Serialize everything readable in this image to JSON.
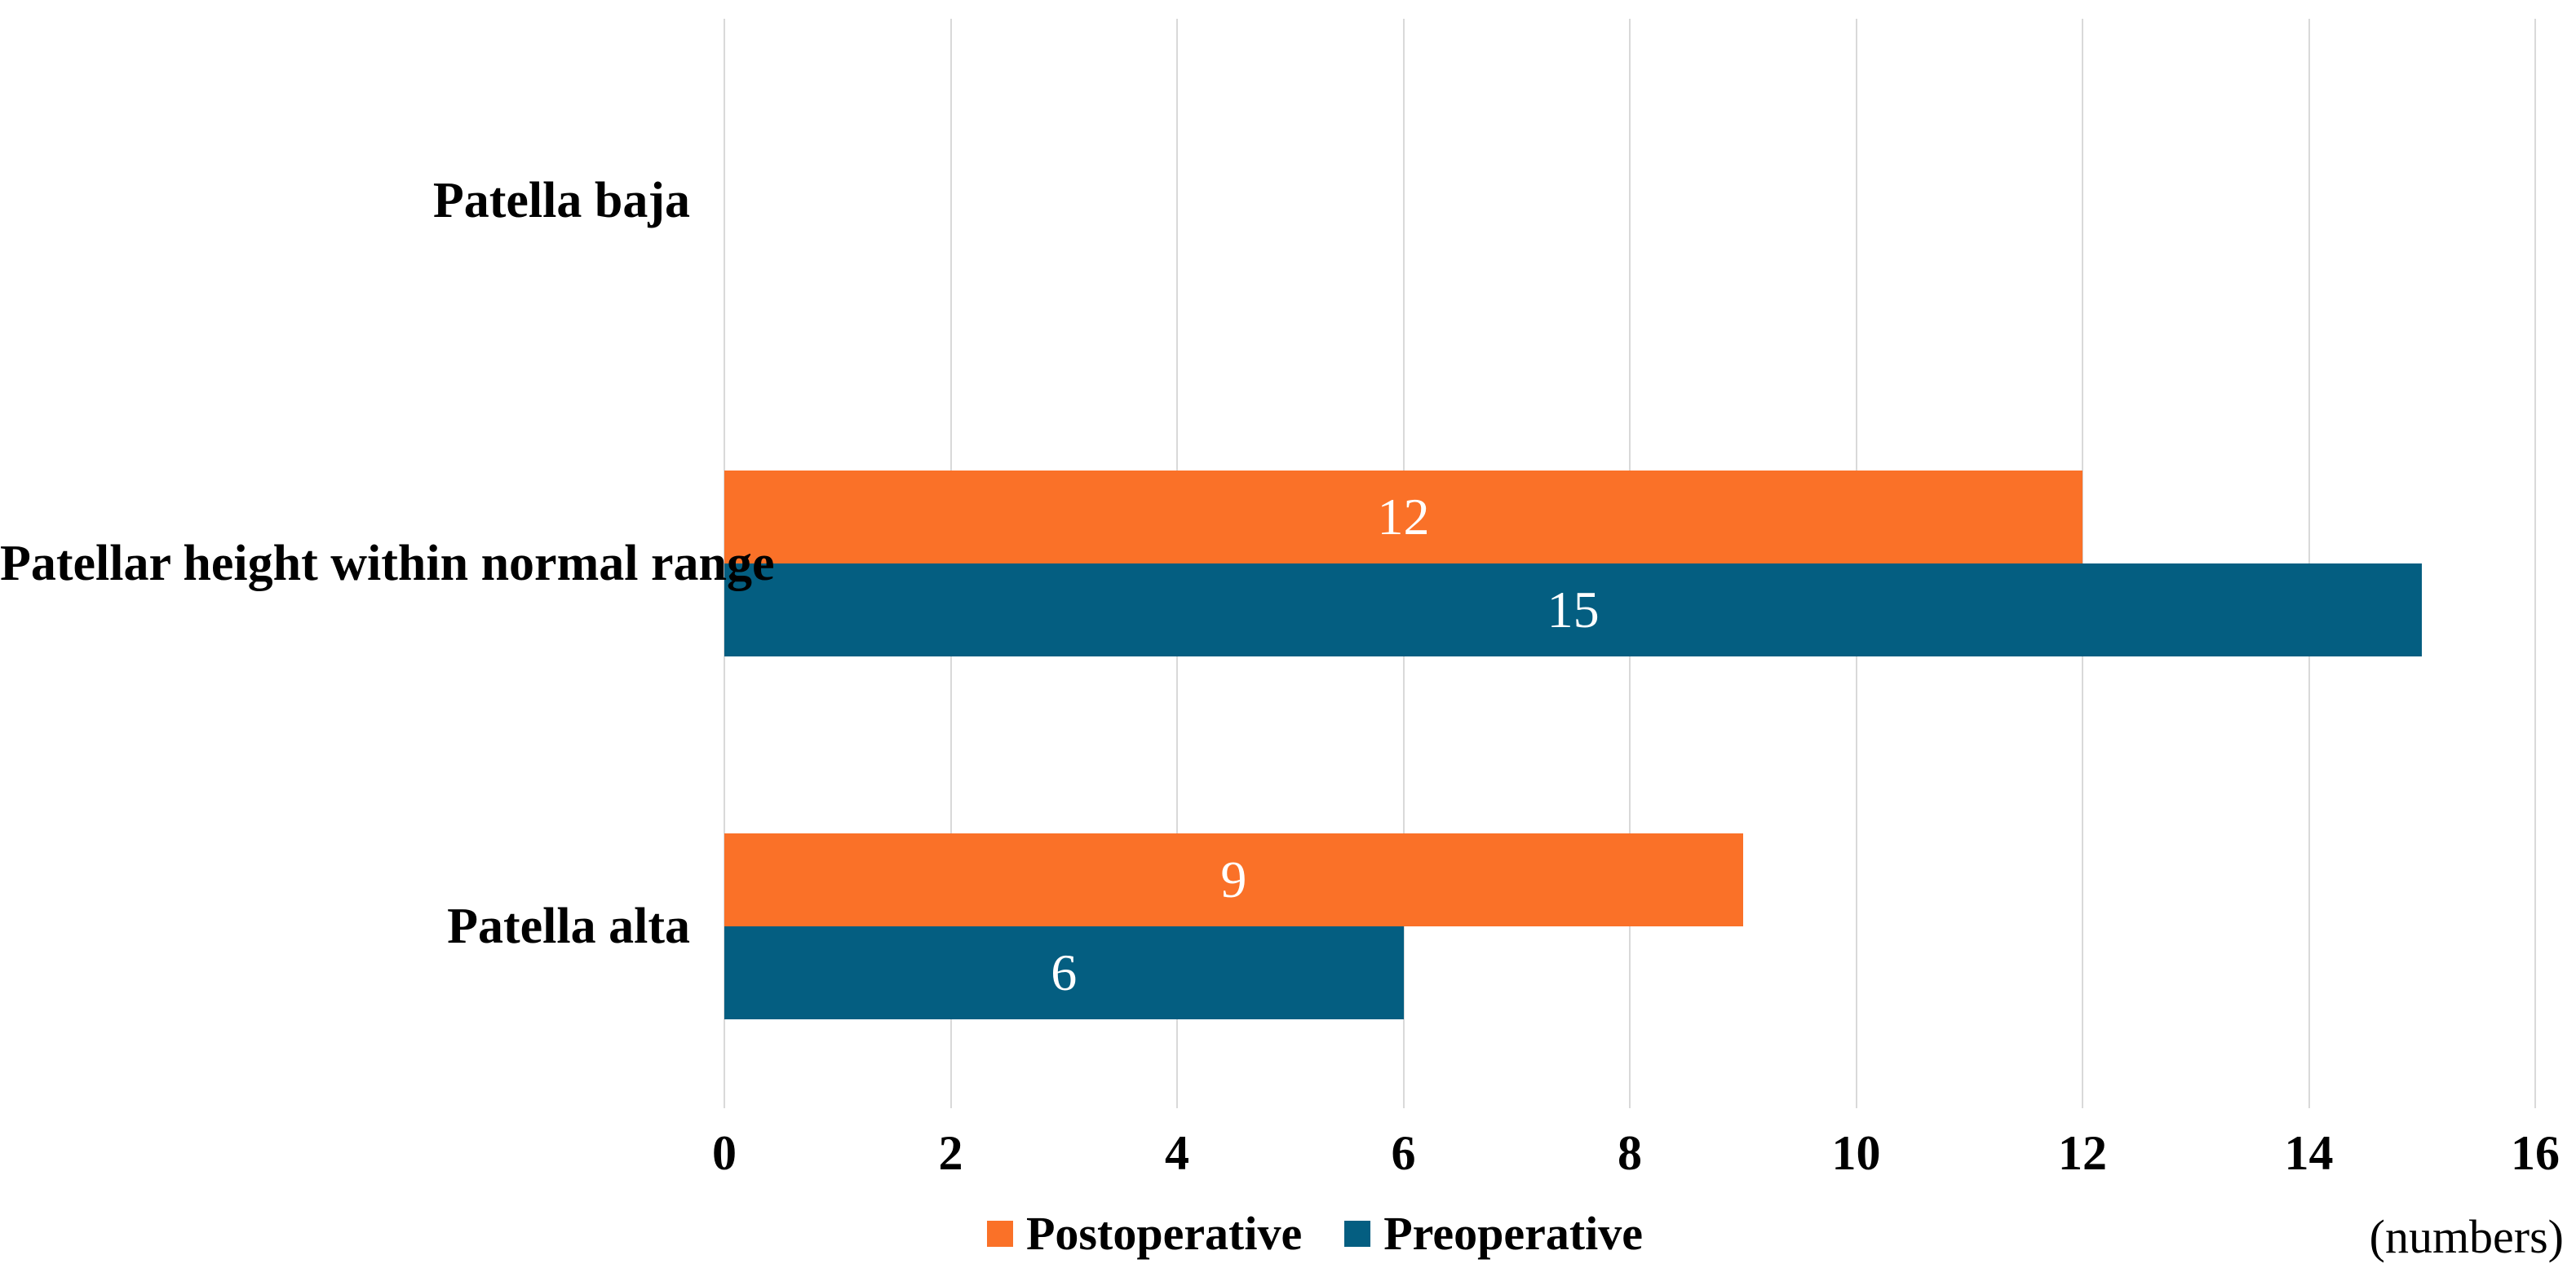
{
  "chart_data": {
    "type": "bar",
    "orientation": "horizontal",
    "title": "",
    "categories": [
      "Patella baja",
      "Patellar height within normal range",
      "Patella alta"
    ],
    "series": [
      {
        "name": "Postoperative",
        "color": "#fa7128",
        "values": [
          0,
          12,
          9
        ]
      },
      {
        "name": "Preoperative",
        "color": "#045e81",
        "values": [
          0,
          15,
          6
        ]
      }
    ],
    "data_labels": {
      "shown_for_nonzero_only": true,
      "color": "#ffffff",
      "values": [
        [
          "",
          "12",
          "9"
        ],
        [
          "",
          "15",
          "6"
        ]
      ]
    },
    "xlim": [
      0,
      16
    ],
    "xtick_labels": [
      "0",
      "2",
      "4",
      "6",
      "8",
      "10",
      "12",
      "14",
      "16"
    ],
    "x_unit_label": "(numbers)",
    "grid": "vertical",
    "gridline_color": "#d9d9d9",
    "legend_position": "bottom",
    "legend_items": [
      {
        "label": "Postoperative",
        "color": "#fa7128"
      },
      {
        "label": "Preoperative",
        "color": "#045e81"
      }
    ]
  }
}
